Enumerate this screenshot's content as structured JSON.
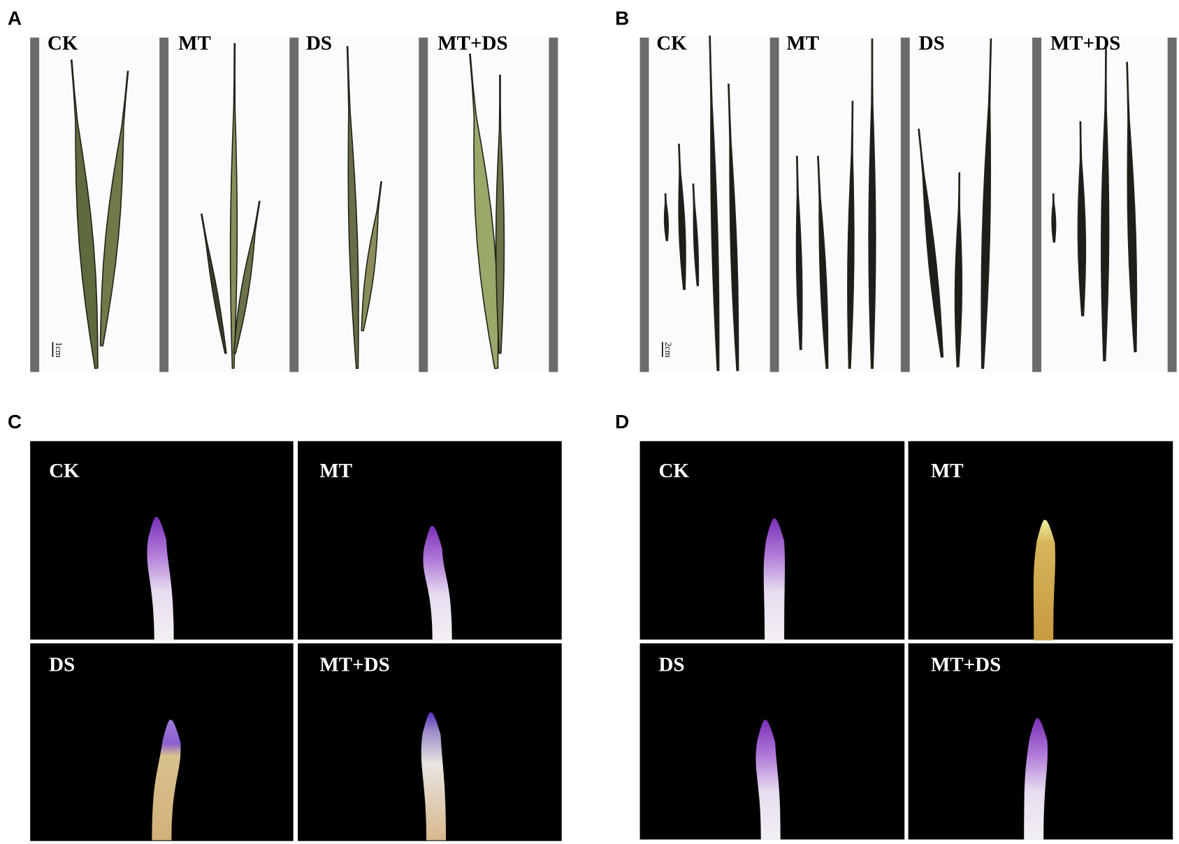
{
  "panels": [
    {
      "letter": "A",
      "labels": [
        "CK",
        "MT",
        "DS",
        "MT+DS"
      ],
      "scale_bar": "1cm"
    },
    {
      "letter": "B",
      "labels": [
        "CK",
        "MT",
        "DS",
        "MT+DS"
      ],
      "scale_bar": "2cm"
    },
    {
      "letter": "C",
      "labels": [
        "CK",
        "MT",
        "DS",
        "MT+DS"
      ]
    },
    {
      "letter": "D",
      "labels": [
        "CK",
        "MT",
        "DS",
        "MT+DS"
      ]
    }
  ]
}
